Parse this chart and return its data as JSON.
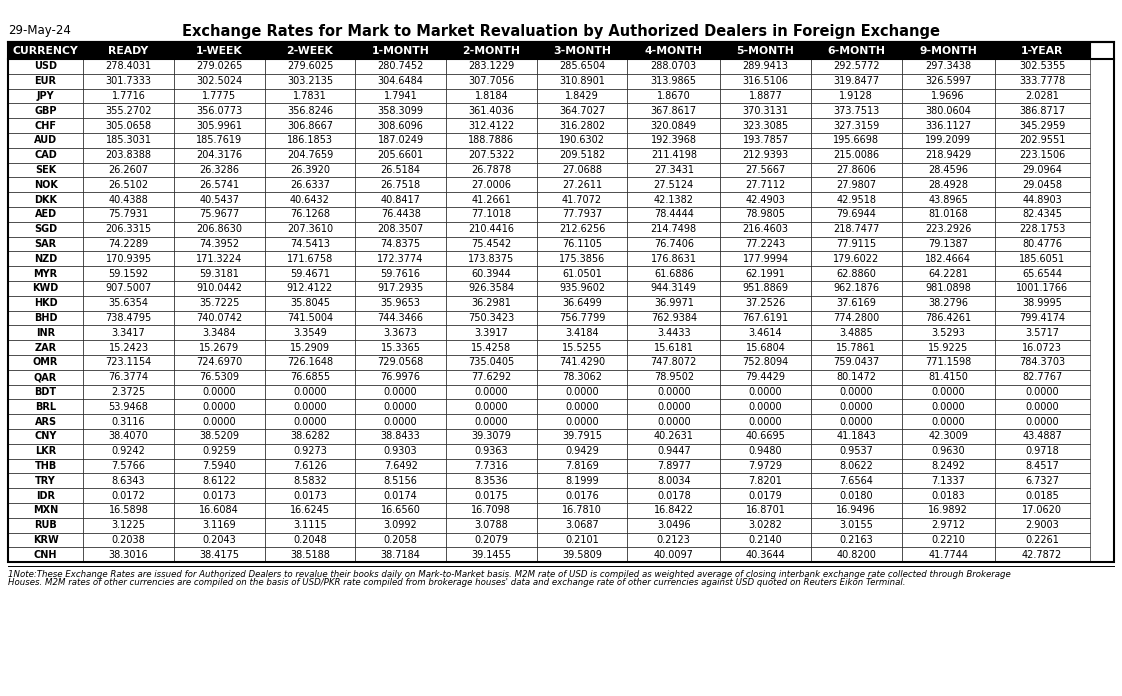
{
  "title": "Exchange Rates for Mark to Market Revaluation by Authorized Dealers in Foreign Exchange",
  "date_label": "29-May-24",
  "columns": [
    "CURRENCY",
    "READY",
    "1-WEEK",
    "2-WEEK",
    "1-MONTH",
    "2-MONTH",
    "3-MONTH",
    "4-MONTH",
    "5-MONTH",
    "6-MONTH",
    "9-MONTH",
    "1-YEAR"
  ],
  "rows": [
    [
      "USD",
      "278.4031",
      "279.0265",
      "279.6025",
      "280.7452",
      "283.1229",
      "285.6504",
      "288.0703",
      "289.9413",
      "292.5772",
      "297.3438",
      "302.5355"
    ],
    [
      "EUR",
      "301.7333",
      "302.5024",
      "303.2135",
      "304.6484",
      "307.7056",
      "310.8901",
      "313.9865",
      "316.5106",
      "319.8477",
      "326.5997",
      "333.7778"
    ],
    [
      "JPY",
      "1.7716",
      "1.7775",
      "1.7831",
      "1.7941",
      "1.8184",
      "1.8429",
      "1.8670",
      "1.8877",
      "1.9128",
      "1.9696",
      "2.0281"
    ],
    [
      "GBP",
      "355.2702",
      "356.0773",
      "356.8246",
      "358.3099",
      "361.4036",
      "364.7027",
      "367.8617",
      "370.3131",
      "373.7513",
      "380.0604",
      "386.8717"
    ],
    [
      "CHF",
      "305.0658",
      "305.9961",
      "306.8667",
      "308.6096",
      "312.4122",
      "316.2802",
      "320.0849",
      "323.3085",
      "327.3159",
      "336.1127",
      "345.2959"
    ],
    [
      "AUD",
      "185.3031",
      "185.7619",
      "186.1853",
      "187.0249",
      "188.7886",
      "190.6302",
      "192.3968",
      "193.7857",
      "195.6698",
      "199.2099",
      "202.9551"
    ],
    [
      "CAD",
      "203.8388",
      "204.3176",
      "204.7659",
      "205.6601",
      "207.5322",
      "209.5182",
      "211.4198",
      "212.9393",
      "215.0086",
      "218.9429",
      "223.1506"
    ],
    [
      "SEK",
      "26.2607",
      "26.3286",
      "26.3920",
      "26.5184",
      "26.7878",
      "27.0688",
      "27.3431",
      "27.5667",
      "27.8606",
      "28.4596",
      "29.0964"
    ],
    [
      "NOK",
      "26.5102",
      "26.5741",
      "26.6337",
      "26.7518",
      "27.0006",
      "27.2611",
      "27.5124",
      "27.7112",
      "27.9807",
      "28.4928",
      "29.0458"
    ],
    [
      "DKK",
      "40.4388",
      "40.5437",
      "40.6432",
      "40.8417",
      "41.2661",
      "41.7072",
      "42.1382",
      "42.4903",
      "42.9518",
      "43.8965",
      "44.8903"
    ],
    [
      "AED",
      "75.7931",
      "75.9677",
      "76.1268",
      "76.4438",
      "77.1018",
      "77.7937",
      "78.4444",
      "78.9805",
      "79.6944",
      "81.0168",
      "82.4345"
    ],
    [
      "SGD",
      "206.3315",
      "206.8630",
      "207.3610",
      "208.3507",
      "210.4416",
      "212.6256",
      "214.7498",
      "216.4603",
      "218.7477",
      "223.2926",
      "228.1753"
    ],
    [
      "SAR",
      "74.2289",
      "74.3952",
      "74.5413",
      "74.8375",
      "75.4542",
      "76.1105",
      "76.7406",
      "77.2243",
      "77.9115",
      "79.1387",
      "80.4776"
    ],
    [
      "NZD",
      "170.9395",
      "171.3224",
      "171.6758",
      "172.3774",
      "173.8375",
      "175.3856",
      "176.8631",
      "177.9994",
      "179.6022",
      "182.4664",
      "185.6051"
    ],
    [
      "MYR",
      "59.1592",
      "59.3181",
      "59.4671",
      "59.7616",
      "60.3944",
      "61.0501",
      "61.6886",
      "62.1991",
      "62.8860",
      "64.2281",
      "65.6544"
    ],
    [
      "KWD",
      "907.5007",
      "910.0442",
      "912.4122",
      "917.2935",
      "926.3584",
      "935.9602",
      "944.3149",
      "951.8869",
      "962.1876",
      "981.0898",
      "1001.1766"
    ],
    [
      "HKD",
      "35.6354",
      "35.7225",
      "35.8045",
      "35.9653",
      "36.2981",
      "36.6499",
      "36.9971",
      "37.2526",
      "37.6169",
      "38.2796",
      "38.9995"
    ],
    [
      "BHD",
      "738.4795",
      "740.0742",
      "741.5004",
      "744.3466",
      "750.3423",
      "756.7799",
      "762.9384",
      "767.6191",
      "774.2800",
      "786.4261",
      "799.4174"
    ],
    [
      "INR",
      "3.3417",
      "3.3484",
      "3.3549",
      "3.3673",
      "3.3917",
      "3.4184",
      "3.4433",
      "3.4614",
      "3.4885",
      "3.5293",
      "3.5717"
    ],
    [
      "ZAR",
      "15.2423",
      "15.2679",
      "15.2909",
      "15.3365",
      "15.4258",
      "15.5255",
      "15.6181",
      "15.6804",
      "15.7861",
      "15.9225",
      "16.0723"
    ],
    [
      "OMR",
      "723.1154",
      "724.6970",
      "726.1648",
      "729.0568",
      "735.0405",
      "741.4290",
      "747.8072",
      "752.8094",
      "759.0437",
      "771.1598",
      "784.3703"
    ],
    [
      "QAR",
      "76.3774",
      "76.5309",
      "76.6855",
      "76.9976",
      "77.6292",
      "78.3062",
      "78.9502",
      "79.4429",
      "80.1472",
      "81.4150",
      "82.7767"
    ],
    [
      "BDT",
      "2.3725",
      "0.0000",
      "0.0000",
      "0.0000",
      "0.0000",
      "0.0000",
      "0.0000",
      "0.0000",
      "0.0000",
      "0.0000",
      "0.0000"
    ],
    [
      "BRL",
      "53.9468",
      "0.0000",
      "0.0000",
      "0.0000",
      "0.0000",
      "0.0000",
      "0.0000",
      "0.0000",
      "0.0000",
      "0.0000",
      "0.0000"
    ],
    [
      "ARS",
      "0.3116",
      "0.0000",
      "0.0000",
      "0.0000",
      "0.0000",
      "0.0000",
      "0.0000",
      "0.0000",
      "0.0000",
      "0.0000",
      "0.0000"
    ],
    [
      "CNY",
      "38.4070",
      "38.5209",
      "38.6282",
      "38.8433",
      "39.3079",
      "39.7915",
      "40.2631",
      "40.6695",
      "41.1843",
      "42.3009",
      "43.4887"
    ],
    [
      "LKR",
      "0.9242",
      "0.9259",
      "0.9273",
      "0.9303",
      "0.9363",
      "0.9429",
      "0.9447",
      "0.9480",
      "0.9537",
      "0.9630",
      "0.9718"
    ],
    [
      "THB",
      "7.5766",
      "7.5940",
      "7.6126",
      "7.6492",
      "7.7316",
      "7.8169",
      "7.8977",
      "7.9729",
      "8.0622",
      "8.2492",
      "8.4517"
    ],
    [
      "TRY",
      "8.6343",
      "8.6122",
      "8.5832",
      "8.5156",
      "8.3536",
      "8.1999",
      "8.0034",
      "7.8201",
      "7.6564",
      "7.1337",
      "6.7327"
    ],
    [
      "IDR",
      "0.0172",
      "0.0173",
      "0.0173",
      "0.0174",
      "0.0175",
      "0.0176",
      "0.0178",
      "0.0179",
      "0.0180",
      "0.0183",
      "0.0185"
    ],
    [
      "MXN",
      "16.5898",
      "16.6084",
      "16.6245",
      "16.6560",
      "16.7098",
      "16.7810",
      "16.8422",
      "16.8701",
      "16.9496",
      "16.9892",
      "17.0620"
    ],
    [
      "RUB",
      "3.1225",
      "3.1169",
      "3.1115",
      "3.0992",
      "3.0788",
      "3.0687",
      "3.0496",
      "3.0282",
      "3.0155",
      "2.9712",
      "2.9003"
    ],
    [
      "KRW",
      "0.2038",
      "0.2043",
      "0.2048",
      "0.2058",
      "0.2079",
      "0.2101",
      "0.2123",
      "0.2140",
      "0.2163",
      "0.2210",
      "0.2261"
    ],
    [
      "CNH",
      "38.3016",
      "38.4175",
      "38.5188",
      "38.7184",
      "39.1455",
      "39.5809",
      "40.0097",
      "40.3644",
      "40.8200",
      "41.7744",
      "42.7872"
    ]
  ],
  "footnote_line1": "1Note:These Exchange Rates are issued for Authorized Dealers to revalue their books daily on Mark-to-Market basis. M2M rate of USD is compiled as weighted average of closing interbank exchange rate collected through Brokerage",
  "footnote_line2": "Houses. M2M rates of other currencies are compiled on the basis of USD/PKR rate compiled from brokerage houses' data and exchange rate of other currencies against USD quoted on Reuters Eikon Terminal.",
  "header_bg": "#000000",
  "header_fg": "#ffffff",
  "title_fontsize": 10.5,
  "date_fontsize": 8.5,
  "header_fontsize": 7.8,
  "data_fontsize": 7.0,
  "footnote_fontsize": 6.2
}
